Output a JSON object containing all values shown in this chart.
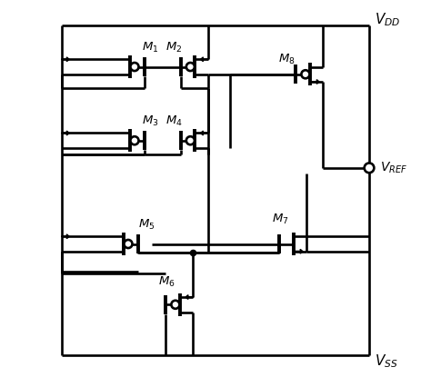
{
  "fig_w": 4.74,
  "fig_h": 4.15,
  "dpi": 100,
  "labels": {
    "VDD": "$V_{DD}$",
    "VSS": "$V_{SS}$",
    "VREF": "$V_{REF}$",
    "M1": "$M_1$",
    "M2": "$M_2$",
    "M3": "$M_3$",
    "M4": "$M_4$",
    "M5": "$M_5$",
    "M6": "$M_6$",
    "M7": "$M_7$",
    "M8": "$M_8$"
  },
  "lw": 1.9,
  "lw_thick": 2.8
}
